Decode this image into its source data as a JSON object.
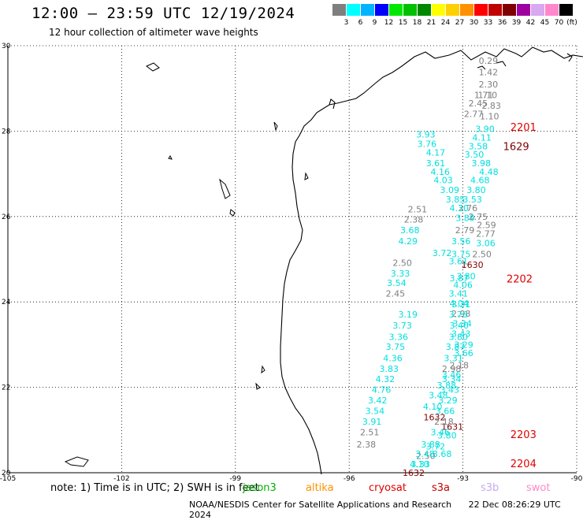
{
  "header": {
    "title": "12:00 – 23:59 UTC 12/19/2024",
    "subtitle": "12 hour collection of altimeter wave heights"
  },
  "scale": {
    "unit": "(ft)",
    "bins": [
      {
        "label": "3",
        "color": "#7f7f7f"
      },
      {
        "label": "6",
        "color": "#00ffff"
      },
      {
        "label": "9",
        "color": "#00b4ff"
      },
      {
        "label": "12",
        "color": "#0000ff"
      },
      {
        "label": "15",
        "color": "#00e800"
      },
      {
        "label": "18",
        "color": "#00c000"
      },
      {
        "label": "21",
        "color": "#008800"
      },
      {
        "label": "24",
        "color": "#ffff00"
      },
      {
        "label": "27",
        "color": "#ffd000"
      },
      {
        "label": "30",
        "color": "#ff9000"
      },
      {
        "label": "33",
        "color": "#ff0000"
      },
      {
        "label": "36",
        "color": "#c00000"
      },
      {
        "label": "39",
        "color": "#800000"
      },
      {
        "label": "42",
        "color": "#a000a0"
      },
      {
        "label": "45",
        "color": "#d8a8f0"
      },
      {
        "label": "70",
        "color": "#ff88cc"
      },
      {
        "label": "",
        "color": "#000000"
      }
    ]
  },
  "axes": {
    "lat_ticks": [
      "30",
      "28",
      "26",
      "24",
      "22",
      "20"
    ],
    "lon_ticks": [
      "-105",
      "-102",
      "-99",
      "-96",
      "-93",
      "-90"
    ],
    "lat_values": [
      30,
      28,
      26,
      24,
      22,
      20
    ],
    "lon_values": [
      -105,
      -102,
      -99,
      -96,
      -93,
      -90
    ],
    "lat_range": [
      20,
      30
    ],
    "lon_range": [
      -105,
      -90
    ],
    "grid": true
  },
  "chart_data": {
    "type": "scatter",
    "x": [
      -92.33,
      -92.33,
      -92.33,
      -92.45,
      -92.6,
      -92.72,
      -92.35,
      -92.25,
      -92.3,
      -92.42,
      -92.5,
      -92.6,
      -92.7,
      -92.52,
      -92.32,
      -92.55,
      -92.65,
      -92.75,
      -92.87,
      -92.6,
      -92.38,
      -92.4,
      -92.4,
      -92.5,
      -92.75,
      -92.92,
      -93.0,
      -93.12,
      -93.12,
      -93.05,
      -93.05,
      -92.95,
      -92.94,
      -93.1,
      -93.2,
      -93.35,
      -93.52,
      -93.6,
      -93.72,
      -93.72,
      -93.95,
      -93.98,
      -93.1,
      -93.05,
      -93.05,
      -93.02,
      -93.05,
      -92.98,
      -92.98,
      -93.1,
      -93.3,
      -93.43,
      -93.65,
      -93.8,
      -93.75,
      -93.28,
      -93.42,
      -93.72,
      -93.98,
      -94.12,
      -94.2,
      -94.3,
      -94.4,
      -94.45,
      -93.55,
      -94.6,
      -94.65,
      -94.75,
      -94.78,
      -93.1,
      -93.12,
      -93.1,
      -93.12,
      -93.2,
      -93.25,
      -93.3,
      -93.3,
      -93.35,
      -93.4,
      -93.47,
      -93.5,
      -93.6,
      -93.85,
      -94.0,
      -94.15,
      -94.3,
      -94.45,
      -94.6,
      -94.7,
      -94.78,
      -94.85,
      -94.95,
      -95.05,
      -95.15,
      -95.25,
      -95.32,
      -95.4,
      -95.46,
      -95.55,
      -93.55
    ],
    "y": [
      29.65,
      29.38,
      29.1,
      28.85,
      28.65,
      28.4,
      28.85,
      28.6,
      28.35,
      28.05,
      27.85,
      27.65,
      27.45,
      27.25,
      27.05,
      26.85,
      26.62,
      26.4,
      26.2,
      26.0,
      25.8,
      25.6,
      25.38,
      25.12,
      24.87,
      24.6,
      24.4,
      24.2,
      24.95,
      25.12,
      25.42,
      25.68,
      25.97,
      26.2,
      26.4,
      26.62,
      26.85,
      27.05,
      27.25,
      27.5,
      27.7,
      27.92,
      24.56,
      23.95,
      23.73,
      23.5,
      23.26,
      23.0,
      22.8,
      22.52,
      22.3,
      22.05,
      21.82,
      21.55,
      21.3,
      21.08,
      20.88,
      20.62,
      20.4,
      20.2,
      26.17,
      25.93,
      25.68,
      25.42,
      25.15,
      24.92,
      24.67,
      24.45,
      24.2,
      23.97,
      23.71,
      23.45,
      23.18,
      22.95,
      22.68,
      22.44,
      22.2,
      21.95,
      21.7,
      21.45,
      21.2,
      20.95,
      20.66,
      20.44,
      20.2,
      20.0,
      23.71,
      23.45,
      23.18,
      22.95,
      22.68,
      22.44,
      22.2,
      21.95,
      21.7,
      21.45,
      21.2,
      20.95,
      20.66,
      20.44
    ],
    "labels": [
      "0.29",
      "1.42",
      "2.30",
      "1.71",
      "2.45",
      "2.77",
      "1.10",
      "2.83",
      "1.10",
      "3.90",
      "4.11",
      "3.58",
      "3.50",
      "3.98",
      "4.48",
      "4.68",
      "3.80",
      "3.53",
      "2.76",
      "2.75",
      "2.59",
      "2.77",
      "3.06",
      "2.50",
      "1630",
      "3.80",
      "4.06",
      "3.41",
      "3.61",
      "3.75",
      "3.56",
      "2.79",
      "3.89",
      "4.30",
      "3.85",
      "3.09",
      "4.03",
      "4.16",
      "3.61",
      "4.17",
      "3.76",
      "3.93",
      "3.87",
      "3.31",
      "2.98",
      "3.34",
      "3.43",
      "3.29",
      "3.66",
      "2.18",
      "3.46",
      "3.88",
      "3.48",
      "4.10",
      "1632",
      "1631",
      "3.80",
      "3.72",
      "2.50",
      "3.33",
      "2.51",
      "2.38",
      "3.68",
      "4.29",
      "3.72",
      "2.50",
      "3.33",
      "3.54",
      "2.45",
      "4.04",
      "3.76",
      "3.40",
      "3.80",
      "3.87",
      "3.31",
      "2.98",
      "3.34",
      "3.43",
      "3.29",
      "3.66",
      "2.18",
      "3.46",
      "3.88",
      "3.48",
      "4.10",
      "1632",
      "3.19",
      "3.73",
      "3.36",
      "3.75",
      "4.36",
      "3.83",
      "4.32",
      "4.76",
      "3.42",
      "3.54",
      "3.91",
      "2.51",
      "2.38",
      "3.68"
    ],
    "colors": [
      "#7f7f7f",
      "#7f7f7f",
      "#7f7f7f",
      "#7f7f7f",
      "#7f7f7f",
      "#7f7f7f",
      "#7f7f7f",
      "#7f7f7f",
      "#7f7f7f",
      "#00e0e0",
      "#00e0e0",
      "#00e0e0",
      "#00e0e0",
      "#00e0e0",
      "#00e0e0",
      "#00e0e0",
      "#00e0e0",
      "#00e0e0",
      "#7f7f7f",
      "#7f7f7f",
      "#7f7f7f",
      "#7f7f7f",
      "#00e0e0",
      "#7f7f7f",
      "#800000",
      "#00e0e0",
      "#00e0e0",
      "#00e0e0",
      "#00e0e0",
      "#00e0e0",
      "#00e0e0",
      "#7f7f7f",
      "#00e0e0",
      "#00e0e0",
      "#00e0e0",
      "#00e0e0",
      "#00e0e0",
      "#00e0e0",
      "#00e0e0",
      "#00e0e0",
      "#00e0e0",
      "#00e0e0",
      "#00e0e0",
      "#00e0e0",
      "#7f7f7f",
      "#00e0e0",
      "#00e0e0",
      "#00e0e0",
      "#00e0e0",
      "#7f7f7f",
      "#00e0e0",
      "#00e0e0",
      "#00e0e0",
      "#00e0e0",
      "#800000",
      "#800000",
      "#00e0e0",
      "#00e0e0",
      "#7f7f7f",
      "#00e0e0",
      "#7f7f7f",
      "#7f7f7f",
      "#00e0e0",
      "#00e0e0",
      "#00e0e0",
      "#7f7f7f",
      "#00e0e0",
      "#00e0e0",
      "#7f7f7f",
      "#00e0e0",
      "#00e0e0",
      "#00e0e0",
      "#00e0e0",
      "#00e0e0",
      "#00e0e0",
      "#7f7f7f",
      "#00e0e0",
      "#00e0e0",
      "#00e0e0",
      "#00e0e0",
      "#7f7f7f",
      "#00e0e0",
      "#00e0e0",
      "#00e0e0",
      "#00e0e0",
      "#800000",
      "#00e0e0",
      "#00e0e0",
      "#00e0e0",
      "#00e0e0",
      "#00e0e0",
      "#00e0e0",
      "#00e0e0",
      "#00e0e0",
      "#00e0e0",
      "#00e0e0",
      "#00e0e0",
      "#7f7f7f",
      "#7f7f7f",
      "#00e0e0"
    ],
    "time_labels": [
      {
        "text": "2201",
        "lat": 28.1,
        "lon": -91.75
      },
      {
        "text": "1629",
        "lat": 27.65,
        "lon": -91.94
      },
      {
        "text": "2202",
        "lat": 24.55,
        "lon": -91.85
      },
      {
        "text": "2203",
        "lat": 20.9,
        "lon": -91.75
      },
      {
        "text": "2204",
        "lat": 20.22,
        "lon": -91.75
      }
    ]
  },
  "note": {
    "text": "note:  1) Time is in UTC;  2) SWH is in feet",
    "missions": [
      {
        "name": "jason3",
        "color": "#00b000"
      },
      {
        "name": "altika",
        "color": "#ff9000"
      },
      {
        "name": "cryosat",
        "color": "#e00000"
      },
      {
        "name": "s3a",
        "color": "#c00000"
      },
      {
        "name": "s3b",
        "color": "#c8a8f0"
      },
      {
        "name": "swot",
        "color": "#ff88cc"
      }
    ]
  },
  "footer": {
    "credit": "NOAA/NESDIS Center for Satellite Applications and Research",
    "timestamp": "22 Dec 08:26:29 UTC 2024"
  }
}
